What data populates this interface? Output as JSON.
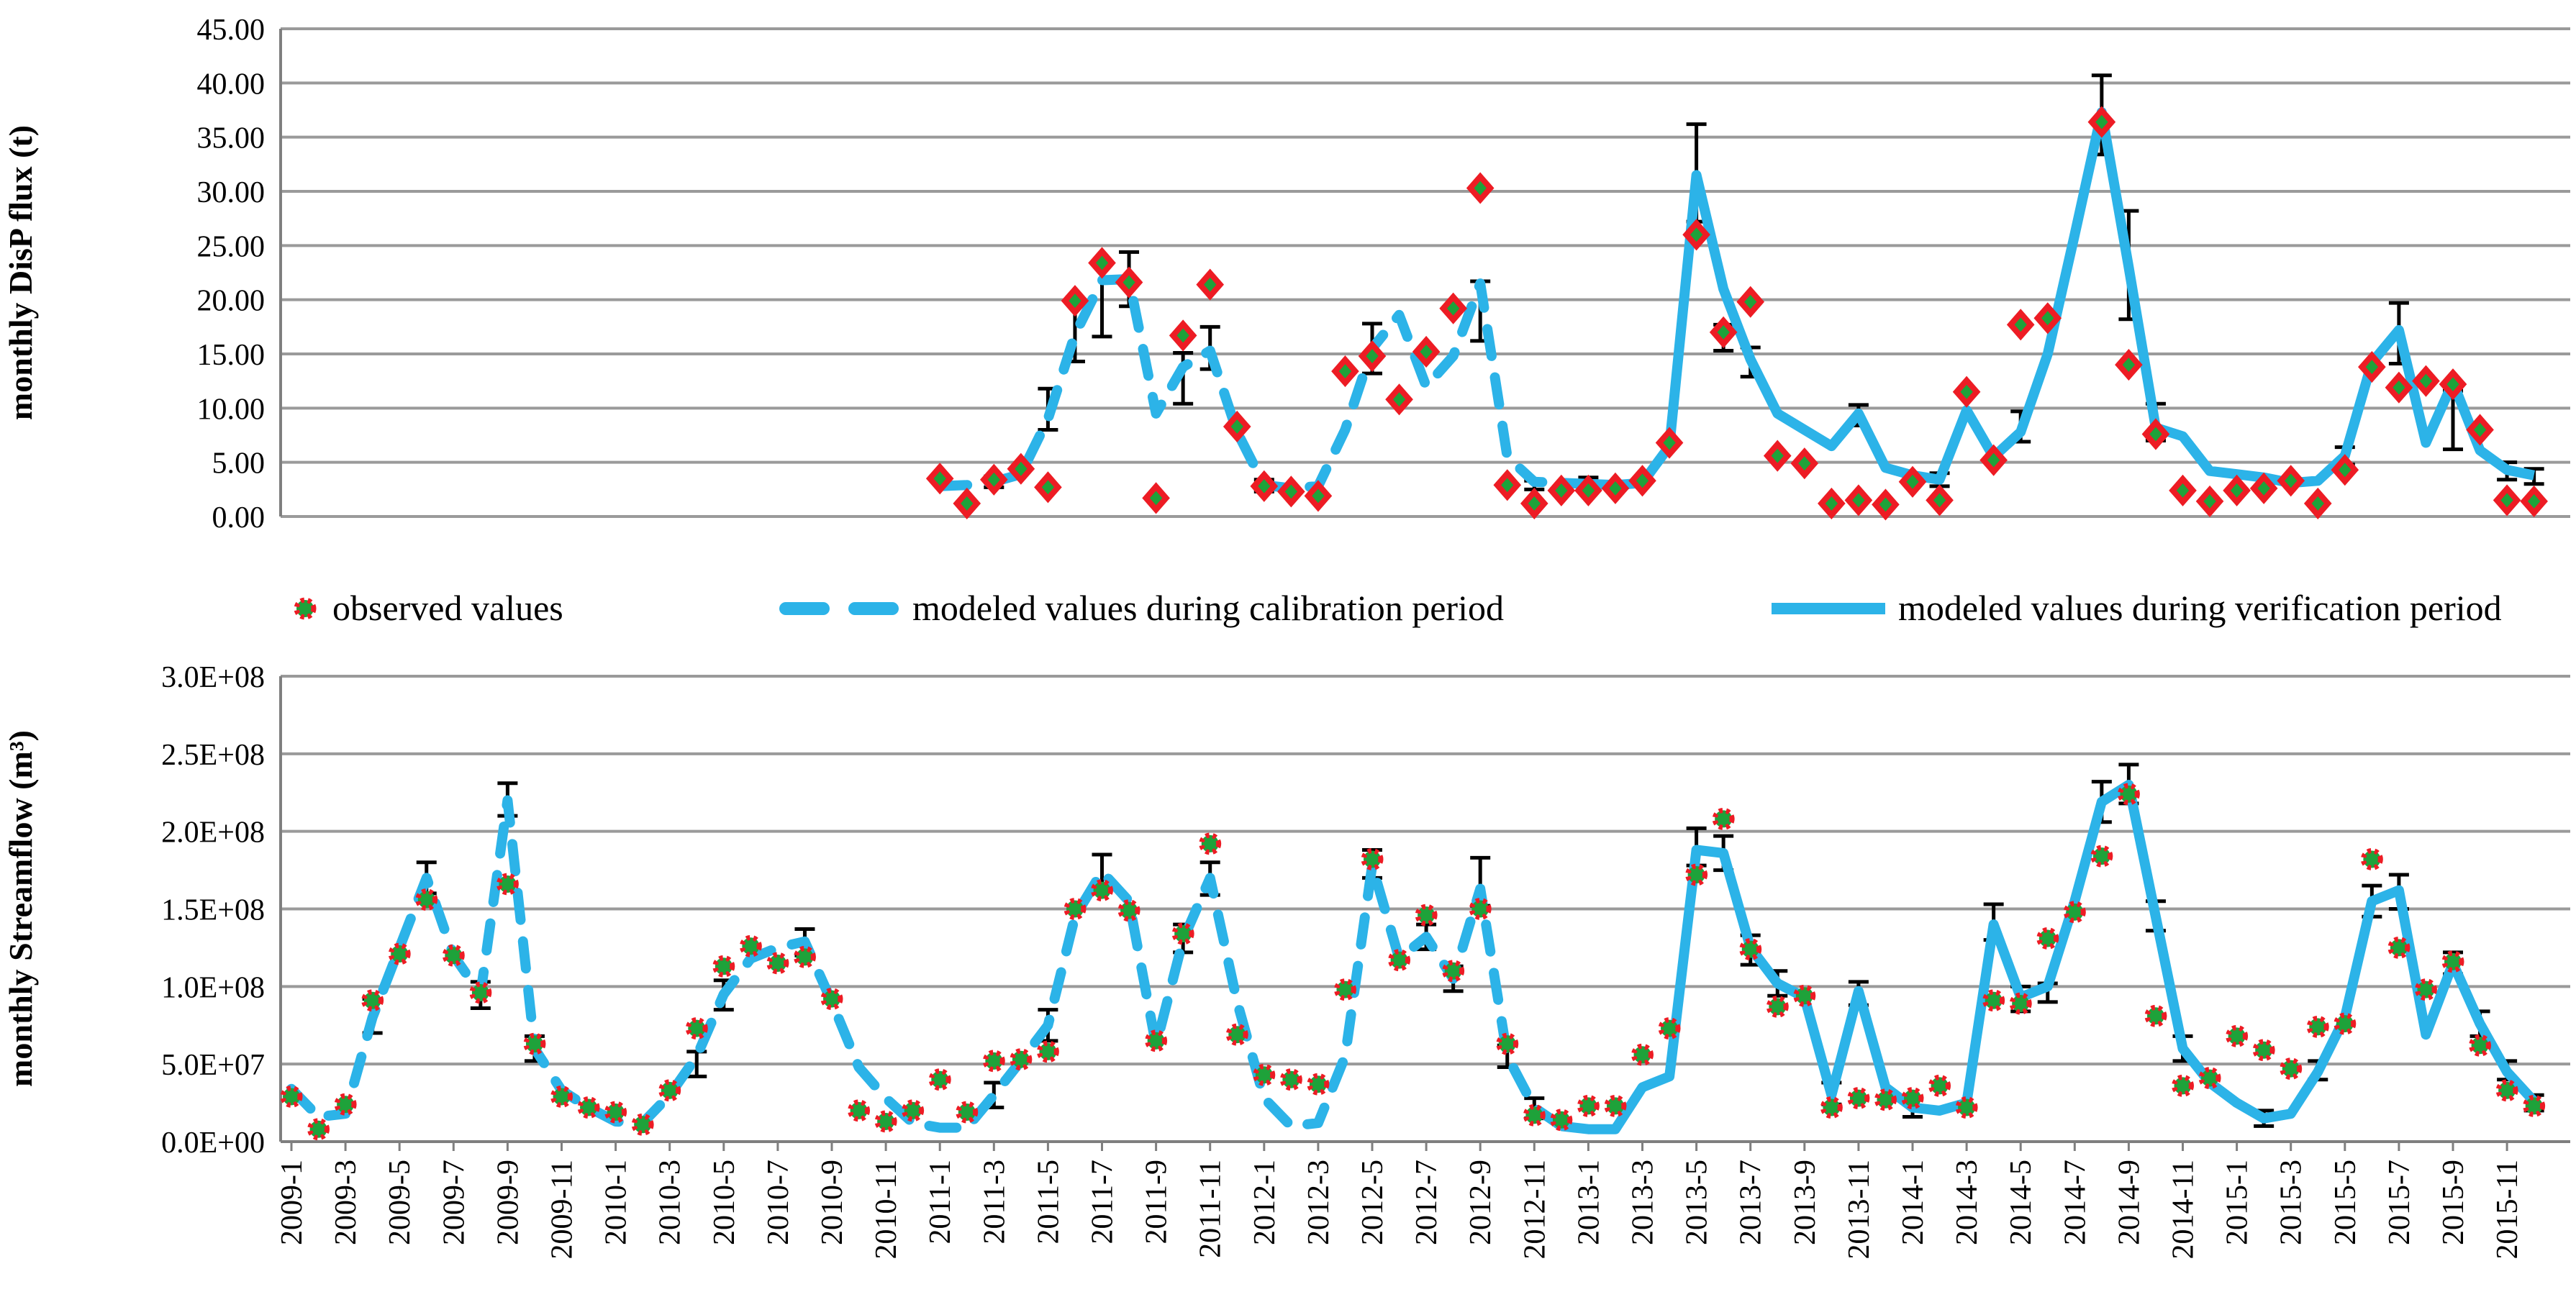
{
  "page": {
    "background": "#ffffff"
  },
  "colors": {
    "modeled_line": "#2CB3E8",
    "observed_fill": "#1EA23A",
    "observed_stroke": "#ED1C24",
    "error_bar": "#000000",
    "gridline": "#9a9a9a",
    "axis_line": "#7f7f7f",
    "text": "#000000"
  },
  "legend": {
    "observed_label": "observed values",
    "calibration_label": "modeled values during calibration period",
    "verification_label": "modeled values during verification period"
  },
  "x_axis": {
    "tick_labels": [
      "2009-1",
      "2009-3",
      "2009-5",
      "2009-7",
      "2009-9",
      "2009-11",
      "2010-1",
      "2010-3",
      "2010-5",
      "2010-7",
      "2010-9",
      "2010-11",
      "2011-1",
      "2011-3",
      "2011-5",
      "2011-7",
      "2011-9",
      "2011-11",
      "2012-1",
      "2012-3",
      "2012-5",
      "2012-7",
      "2012-9",
      "2012-11",
      "2013-1",
      "2013-3",
      "2013-5",
      "2013-7",
      "2013-9",
      "2013-11",
      "2014-1",
      "2014-3",
      "2014-5",
      "2014-7",
      "2014-9",
      "2014-11",
      "2015-1",
      "2015-3",
      "2015-5",
      "2015-7",
      "2015-9",
      "2015-11"
    ],
    "months_total": 84
  },
  "chart_data": [
    {
      "type": "line",
      "title": "monthly DisP flux",
      "ylabel": "monthly DisP flux (t)",
      "ylim": [
        0,
        45
      ],
      "ytick_labels": [
        "45.00",
        "40.00",
        "35.00",
        "30.00",
        "25.00",
        "20.00",
        "15.00",
        "10.00",
        "5.00",
        "0.00"
      ],
      "grid": true,
      "start_month_index": 24,
      "calibration_end_index": 23,
      "series_names": [
        "observed values",
        "modeled values during calibration period",
        "modeled values during verification period"
      ],
      "observed": [
        3.5,
        1.2,
        3.4,
        4.4,
        2.7,
        19.9,
        23.4,
        21.6,
        1.7,
        16.7,
        21.4,
        8.3,
        2.8,
        2.3,
        1.9,
        13.4,
        14.8,
        10.8,
        15.2,
        19.2,
        30.3,
        2.9,
        1.2,
        2.4,
        2.4,
        2.6,
        3.3,
        6.8,
        26.0,
        17.0,
        19.8,
        5.6,
        4.9,
        1.2,
        1.5,
        1.1,
        3.2,
        1.5,
        11.5,
        5.2,
        17.7,
        18.3,
        null,
        36.4,
        14.0,
        7.6,
        2.4,
        1.4,
        2.4,
        2.6,
        3.3,
        1.2,
        4.3,
        13.8,
        11.9,
        12.5,
        12.2,
        8.0,
        1.5,
        1.4
      ],
      "modeled": [
        2.8,
        2.9,
        3.2,
        3.9,
        9.0,
        16.8,
        21.8,
        21.9,
        9.5,
        13.8,
        15.3,
        7.8,
        2.9,
        2.6,
        2.8,
        8.0,
        15.5,
        18.6,
        12.0,
        14.8,
        21.5,
        5.5,
        3.2,
        3.1,
        3.0,
        2.9,
        3.1,
        6.5,
        31.5,
        21.0,
        14.5,
        9.5,
        8.0,
        6.5,
        9.5,
        4.5,
        3.8,
        3.4,
        9.8,
        5.5,
        7.8,
        15.0,
        26.0,
        37.3,
        23.0,
        8.2,
        7.4,
        4.2,
        3.9,
        3.6,
        3.1,
        3.3,
        5.6,
        14.2,
        17.2,
        6.8,
        12.4,
        6.1,
        4.3,
        3.8
      ],
      "error_bars": [
        [
          2,
          2.7,
          3.7
        ],
        [
          4,
          8.0,
          11.8
        ],
        [
          5,
          14.3,
          19.9
        ],
        [
          6,
          16.6,
          23.4
        ],
        [
          7,
          19.4,
          24.4
        ],
        [
          9,
          10.4,
          15.1
        ],
        [
          10,
          13.6,
          17.5
        ],
        [
          12,
          2.3,
          3.4
        ],
        [
          16,
          13.2,
          17.8
        ],
        [
          20,
          16.2,
          21.7
        ],
        [
          22,
          2.5,
          3.3
        ],
        [
          24,
          2.6,
          3.6
        ],
        [
          28,
          27.2,
          36.2
        ],
        [
          29,
          15.3,
          17.7
        ],
        [
          30,
          12.9,
          15.6
        ],
        [
          34,
          8.4,
          10.3
        ],
        [
          37,
          2.8,
          4.0
        ],
        [
          40,
          6.9,
          9.7
        ],
        [
          43,
          33.4,
          40.7
        ],
        [
          44,
          18.2,
          28.2
        ],
        [
          45,
          7.0,
          10.4
        ],
        [
          52,
          4.8,
          6.4
        ],
        [
          54,
          14.1,
          19.7
        ],
        [
          56,
          6.2,
          11.6
        ],
        [
          58,
          3.4,
          5.0
        ],
        [
          59,
          3.0,
          4.4
        ]
      ]
    },
    {
      "type": "line",
      "title": "monthly Streamflow",
      "ylabel": "monthly Streamflow (m³)",
      "value_unit": "1E+08 m³",
      "ylim": [
        0,
        3
      ],
      "ytick_labels": [
        "3.0E+08",
        "2.5E+08",
        "2.0E+08",
        "1.5E+08",
        "1.0E+08",
        "5.0E+07",
        "0.0E+00"
      ],
      "grid": true,
      "start_month_index": 0,
      "calibration_end_index": 47,
      "series_names": [
        "observed values",
        "modeled values during calibration period",
        "modeled values during verification period"
      ],
      "observed": [
        0.29,
        0.08,
        0.24,
        0.91,
        1.21,
        1.56,
        1.2,
        0.96,
        1.66,
        0.63,
        0.29,
        0.22,
        0.19,
        0.11,
        0.33,
        0.73,
        1.13,
        1.26,
        1.15,
        1.19,
        0.92,
        0.2,
        0.13,
        0.2,
        0.4,
        0.19,
        0.52,
        0.53,
        0.58,
        1.5,
        1.62,
        1.49,
        0.65,
        1.34,
        1.92,
        0.69,
        0.43,
        0.4,
        0.37,
        0.98,
        1.82,
        1.17,
        1.46,
        1.1,
        1.5,
        0.63,
        0.17,
        0.14,
        0.23,
        0.23,
        0.56,
        0.73,
        1.72,
        2.08,
        1.24,
        0.87,
        0.94,
        0.22,
        0.28,
        0.27,
        0.28,
        0.36,
        0.22,
        0.91,
        0.89,
        1.31,
        1.48,
        1.84,
        2.24,
        0.81,
        0.36,
        0.41,
        0.68,
        0.59,
        0.47,
        0.74,
        0.76,
        1.82,
        1.25,
        0.98,
        1.16,
        0.62,
        0.33,
        0.23
      ],
      "modeled": [
        0.34,
        0.16,
        0.18,
        0.8,
        1.25,
        1.7,
        1.2,
        0.95,
        2.2,
        0.6,
        0.33,
        0.22,
        0.13,
        0.12,
        0.3,
        0.55,
        0.95,
        1.18,
        1.25,
        1.29,
        0.9,
        0.48,
        0.28,
        0.12,
        0.09,
        0.09,
        0.3,
        0.52,
        0.75,
        1.45,
        1.74,
        1.55,
        0.62,
        1.3,
        1.7,
        0.9,
        0.28,
        0.1,
        0.12,
        0.55,
        1.78,
        1.18,
        1.32,
        1.05,
        1.63,
        0.55,
        0.22,
        0.1,
        0.08,
        0.08,
        0.35,
        0.42,
        1.88,
        1.86,
        1.25,
        1.02,
        0.93,
        0.3,
        0.97,
        0.35,
        0.22,
        0.2,
        0.25,
        1.4,
        0.93,
        1.0,
        1.55,
        2.19,
        2.3,
        1.45,
        0.6,
        0.38,
        0.25,
        0.15,
        0.18,
        0.45,
        0.8,
        1.55,
        1.62,
        0.69,
        1.15,
        0.76,
        0.45,
        0.26
      ],
      "error_bars": [
        [
          3,
          0.7,
          0.92
        ],
        [
          5,
          1.6,
          1.8
        ],
        [
          7,
          0.86,
          1.03
        ],
        [
          8,
          2.1,
          2.31
        ],
        [
          9,
          0.52,
          0.68
        ],
        [
          15,
          0.42,
          0.58
        ],
        [
          16,
          0.85,
          1.04
        ],
        [
          19,
          1.2,
          1.37
        ],
        [
          26,
          0.22,
          0.38
        ],
        [
          28,
          0.65,
          0.85
        ],
        [
          30,
          1.65,
          1.85
        ],
        [
          33,
          1.22,
          1.4
        ],
        [
          34,
          1.59,
          1.8
        ],
        [
          40,
          1.7,
          1.88
        ],
        [
          42,
          1.24,
          1.4
        ],
        [
          43,
          0.97,
          1.13
        ],
        [
          44,
          1.52,
          1.83
        ],
        [
          45,
          0.48,
          0.62
        ],
        [
          46,
          0.15,
          0.28
        ],
        [
          52,
          1.78,
          2.02
        ],
        [
          53,
          1.75,
          1.97
        ],
        [
          54,
          1.14,
          1.33
        ],
        [
          55,
          0.94,
          1.1
        ],
        [
          57,
          0.24,
          0.38
        ],
        [
          58,
          0.88,
          1.03
        ],
        [
          60,
          0.16,
          0.28
        ],
        [
          63,
          1.3,
          1.53
        ],
        [
          64,
          0.84,
          1.0
        ],
        [
          65,
          0.9,
          1.02
        ],
        [
          67,
          2.06,
          2.32
        ],
        [
          68,
          2.18,
          2.43
        ],
        [
          69,
          1.36,
          1.55
        ],
        [
          70,
          0.52,
          0.68
        ],
        [
          73,
          0.1,
          0.2
        ],
        [
          75,
          0.4,
          0.52
        ],
        [
          77,
          1.45,
          1.65
        ],
        [
          78,
          1.5,
          1.72
        ],
        [
          80,
          1.08,
          1.22
        ],
        [
          81,
          0.68,
          0.84
        ],
        [
          82,
          0.4,
          0.52
        ],
        [
          83,
          0.2,
          0.3
        ]
      ]
    }
  ]
}
